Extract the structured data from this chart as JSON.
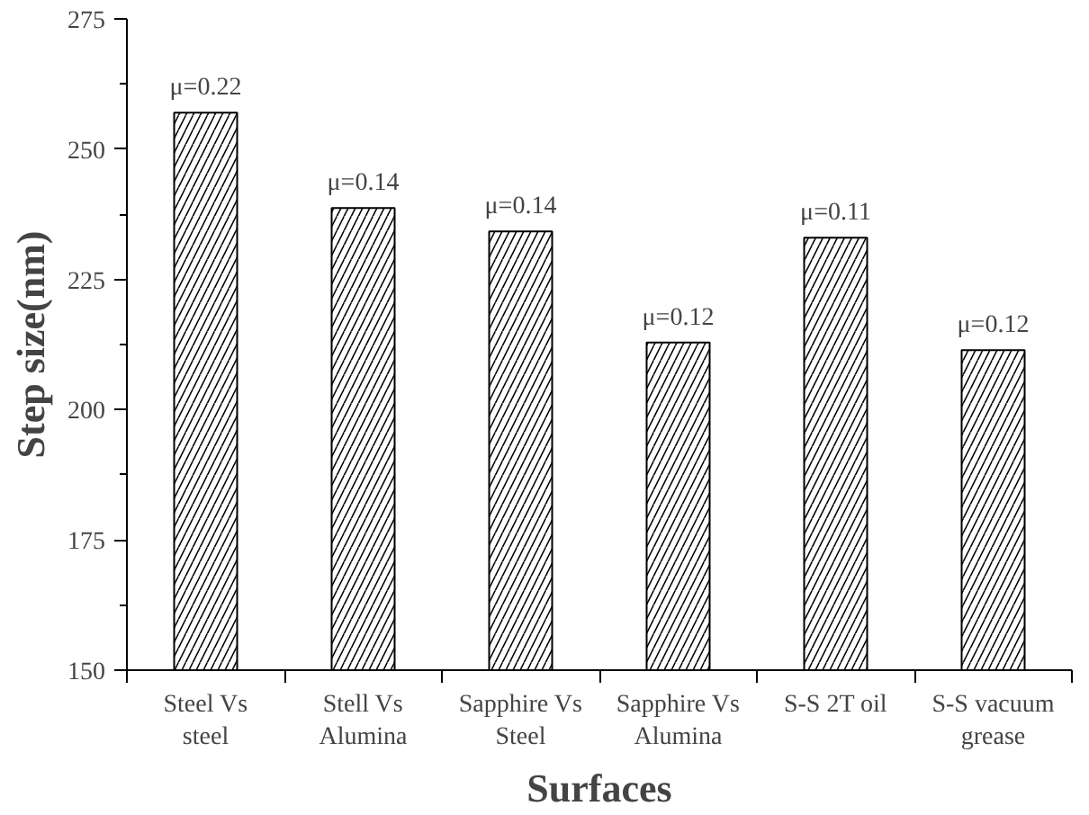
{
  "chart_data": {
    "type": "bar",
    "xlabel": "Surfaces",
    "ylabel": "Step size(nm)",
    "categories": [
      "Steel Vs steel",
      "Stell Vs Alumina",
      "Sapphire Vs Steel",
      "Sapphire Vs Alumina",
      "S-S 2T oil",
      "S-S vacuum grease"
    ],
    "values": [
      257,
      238.7,
      234.2,
      212.9,
      233,
      211.4
    ],
    "color": "#ffffff",
    "ylim": [
      150,
      275
    ],
    "yticks": [
      150,
      175,
      200,
      225,
      250,
      275
    ],
    "grid": false,
    "annotations": [
      {
        "text": "μ=0.22",
        "x": "Steel Vs steel",
        "y": 257
      },
      {
        "text": "μ=0.14",
        "x": "Stell Vs Alumina",
        "y": 238.7
      },
      {
        "text": "μ=0.14",
        "x": "Sapphire Vs Steel",
        "y": 234.2
      },
      {
        "text": "μ=0.12",
        "x": "Sapphire Vs Alumina",
        "y": 212.9
      },
      {
        "text": "μ=0.11",
        "x": "S-S 2T oil",
        "y": 233
      },
      {
        "text": "μ=0.12",
        "x": "S-S vacuum grease",
        "y": 211.4
      }
    ]
  }
}
